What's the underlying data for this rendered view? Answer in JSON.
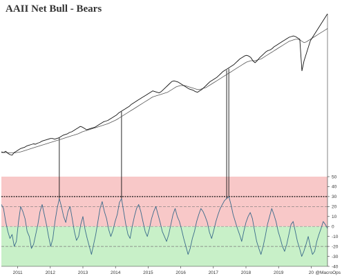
{
  "chart_data": [
    {
      "type": "line",
      "panel": "top",
      "title": "AAII Net Bull - Bears",
      "y_axis": "none",
      "series": [
        {
          "values_approx": [
            58,
            56,
            60,
            54,
            50,
            48,
            56,
            60,
            64,
            68,
            70,
            72,
            76,
            78,
            80,
            82,
            81,
            84,
            86,
            90,
            92,
            94,
            96,
            98,
            98,
            96,
            98,
            100,
            104,
            108,
            110,
            112,
            116,
            118,
            122,
            126,
            130,
            134,
            132,
            128,
            124,
            126,
            128,
            130,
            132,
            136,
            140,
            144,
            148,
            150,
            152,
            156,
            160,
            164,
            168,
            174,
            178,
            182,
            186,
            190,
            194,
            200,
            204,
            208,
            212,
            216,
            220,
            224,
            228,
            232,
            236,
            240,
            238,
            236,
            234,
            238,
            244,
            250,
            256,
            262,
            268,
            270,
            268,
            266,
            262,
            258,
            254,
            250,
            246,
            244,
            242,
            238,
            236,
            240,
            244,
            250,
            256,
            262,
            268,
            272,
            276,
            280,
            286,
            292,
            298,
            302,
            306,
            310,
            314,
            318,
            324,
            330,
            336,
            340,
            344,
            346,
            344,
            340,
            330,
            324,
            330,
            338,
            344,
            350,
            356,
            360,
            362,
            366,
            372,
            376,
            380,
            384,
            388,
            392,
            396,
            400,
            402,
            404,
            402,
            398,
            394,
            300,
            330,
            350,
            370,
            390,
            400,
            410,
            420,
            430,
            440,
            450,
            460,
            470
          ]
        },
        {
          "values_approx": [
            56,
            56,
            56,
            56,
            55,
            55,
            55,
            56,
            57,
            58,
            60,
            62,
            64,
            66,
            68,
            70,
            72,
            74,
            76,
            78,
            80,
            82,
            84,
            86,
            88,
            90,
            92,
            94,
            96,
            98,
            100,
            102,
            104,
            106,
            108,
            110,
            112,
            115,
            118,
            120,
            122,
            124,
            126,
            128,
            130,
            132,
            134,
            136,
            138,
            140,
            142,
            145,
            148,
            151,
            154,
            158,
            162,
            166,
            170,
            174,
            178,
            182,
            186,
            190,
            194,
            198,
            202,
            206,
            210,
            214,
            218,
            222,
            224,
            226,
            228,
            230,
            232,
            234,
            236,
            240,
            244,
            248,
            252,
            254,
            256,
            256,
            256,
            254,
            252,
            250,
            248,
            246,
            244,
            244,
            246,
            248,
            250,
            254,
            258,
            262,
            266,
            270,
            274,
            278,
            282,
            286,
            290,
            294,
            298,
            302,
            306,
            310,
            314,
            318,
            322,
            326,
            328,
            330,
            330,
            330,
            332,
            334,
            336,
            340,
            344,
            348,
            352,
            356,
            360,
            364,
            368,
            372,
            376,
            380,
            384,
            388,
            390,
            392,
            394,
            394,
            392,
            388,
            384,
            386,
            390,
            394,
            398,
            402,
            406,
            410,
            414,
            418,
            422,
            426
          ]
        }
      ]
    },
    {
      "type": "line",
      "panel": "bottom",
      "series": [
        {
          "values_approx": [
            22,
            18,
            5,
            -5,
            -12,
            -8,
            -20,
            -15,
            5,
            20,
            15,
            8,
            -5,
            -10,
            -22,
            -18,
            -8,
            2,
            15,
            22,
            12,
            2,
            -10,
            -20,
            -12,
            5,
            18,
            28,
            20,
            10,
            4,
            15,
            20,
            8,
            -5,
            -14,
            -10,
            2,
            10,
            -3,
            -12,
            -20,
            -28,
            -18,
            -8,
            5,
            18,
            25,
            15,
            8,
            -3,
            -10,
            -4,
            5,
            12,
            24,
            28,
            15,
            2,
            -8,
            -12,
            0,
            10,
            18,
            22,
            15,
            5,
            -5,
            -10,
            -2,
            8,
            15,
            20,
            12,
            4,
            -5,
            -10,
            -15,
            -8,
            2,
            12,
            18,
            10,
            5,
            -3,
            -12,
            -20,
            -28,
            -22,
            -12,
            -5,
            5,
            12,
            18,
            15,
            10,
            4,
            -6,
            -12,
            -4,
            5,
            12,
            18,
            22,
            26,
            28,
            30,
            22,
            12,
            5,
            -2,
            -8,
            -15,
            -5,
            4,
            10,
            14,
            8,
            -4,
            -15,
            -22,
            -28,
            -20,
            -10,
            2,
            10,
            18,
            12,
            5,
            -5,
            -12,
            -20,
            -25,
            -18,
            -8,
            2,
            5,
            -5,
            -15,
            -22,
            -30,
            -25,
            -18,
            -10,
            -20,
            -28,
            -25,
            -15,
            -8,
            -2,
            5,
            2,
            -2
          ]
        }
      ],
      "ylim": [
        -40,
        50
      ],
      "y_ticks": [
        "50",
        "40",
        "30",
        "20",
        "10",
        "0",
        "-10",
        "-20",
        "-30",
        "-40"
      ],
      "x_ticks": [
        "2011",
        "2012",
        "2013",
        "2014",
        "2015",
        "2016",
        "2017",
        "2018",
        "2019",
        "20"
      ],
      "reference_lines": [
        30,
        20,
        0,
        -20
      ],
      "shaded_bands": [
        {
          "from": 0,
          "to": 50,
          "color": "#f8c8c8"
        },
        {
          "from": -40,
          "to": 0,
          "color": "#c8f0c8"
        }
      ],
      "credit": "@MacroOps"
    }
  ],
  "colors": {
    "price": "#111111",
    "moving_average": "#555555",
    "sentiment": "#3a6a8a",
    "sentiment_low": "#2a8a6a",
    "bull_zone": "#f8c8c8",
    "bear_zone": "#c8f0c8"
  }
}
